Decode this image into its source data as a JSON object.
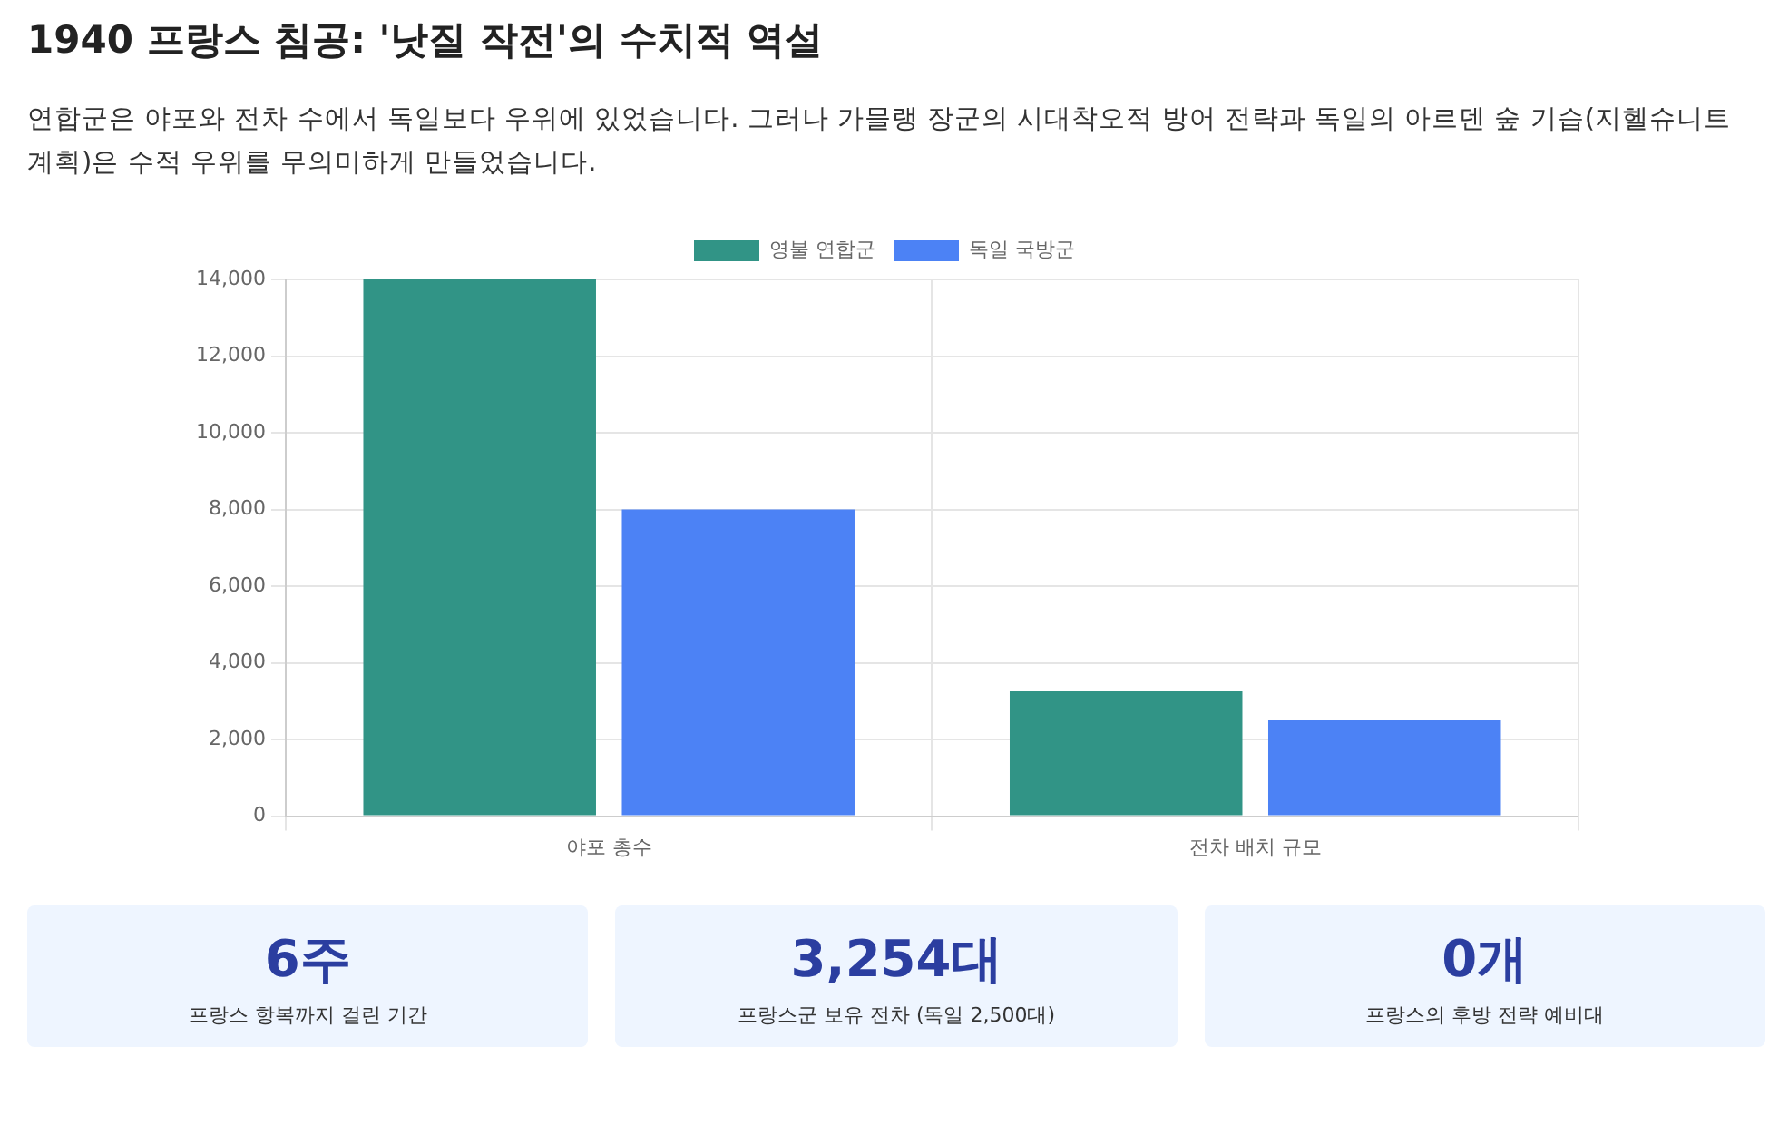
{
  "chart_data": [
    {
      "type": "bar",
      "title": "1940 프랑스 침공: '낫질 작전'의 수치적 역설",
      "subtitle": "연합군은 야포와 전차 수에서 독일보다 우위에 있었습니다. 그러나 가믈랭 장군의 시대착오적 방어 전략과 독일의 아르덴 숲 기습(지헬슈니트 계획)은 수적 우위를 무의미하게 만들었습니다.",
      "categories": [
        "야포 총수",
        "전차 배치 규모"
      ],
      "series": [
        {
          "name": "영불 연합군",
          "color": "#319486",
          "values": [
            14000,
            3254
          ]
        },
        {
          "name": "독일 국방군",
          "color": "#4c82f5",
          "values": [
            8000,
            2500
          ]
        }
      ],
      "ylim": [
        0,
        14000
      ],
      "yticks": [
        {
          "value": 0,
          "label": "0"
        },
        {
          "value": 2000,
          "label": "2,000"
        },
        {
          "value": 4000,
          "label": "4,000"
        },
        {
          "value": 6000,
          "label": "6,000"
        },
        {
          "value": 8000,
          "label": "8,000"
        },
        {
          "value": 10000,
          "label": "10,000"
        },
        {
          "value": 12000,
          "label": "12,000"
        },
        {
          "value": 14000,
          "label": "14,000"
        }
      ],
      "grid": true,
      "legend": "top"
    },
    {
      "type": "other",
      "annotations": [
        "6주",
        "프랑스 항복까지 걸린 기간",
        "3,254대",
        "프랑스군 보유 전차 (독일 2,500대)",
        "0개",
        "프랑스의 후방 전략 예비대"
      ]
    }
  ]
}
